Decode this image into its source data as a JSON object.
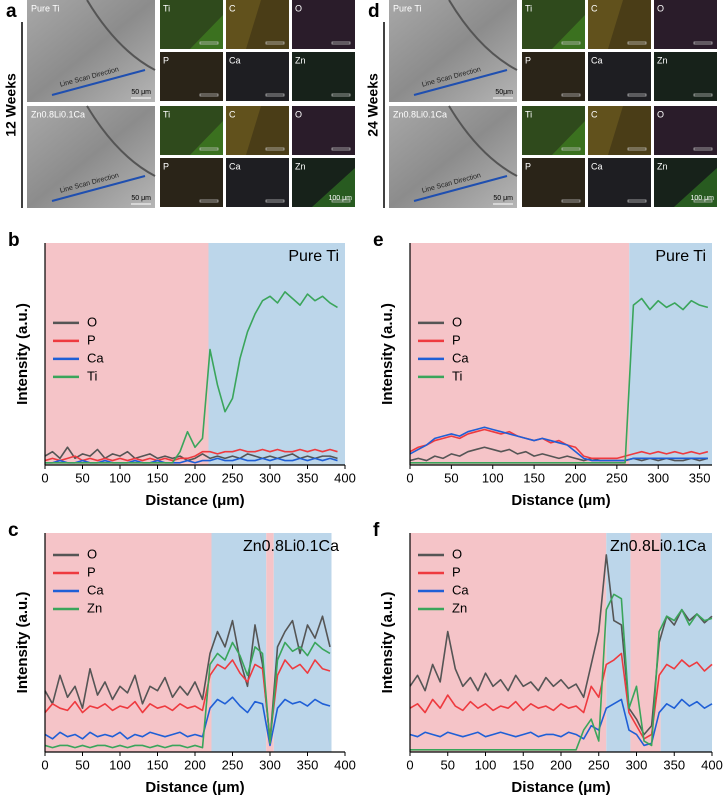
{
  "panel_a": {
    "label": "a",
    "row_label": "12 Weeks",
    "rows": [
      {
        "sample": "Pure Ti",
        "direction": "Line Scan Direction",
        "scale": "50 μm",
        "maps": [
          "Ti",
          "C",
          "O",
          "P",
          "Ca",
          "Zn"
        ]
      },
      {
        "sample": "Zn0.8Li0.1Ca",
        "direction": "Line Scan Direction",
        "scale": "50 μm",
        "maps": [
          "Ti",
          "C",
          "O",
          "P",
          "Ca",
          "Zn"
        ],
        "map_scale": "100 μm"
      }
    ]
  },
  "panel_d": {
    "label": "d",
    "row_label": "24 Weeks",
    "rows": [
      {
        "sample": "Pure Ti",
        "direction": "Line Scan Direction",
        "scale": "50μm",
        "maps": [
          "Ti",
          "C",
          "O",
          "P",
          "Ca",
          "Zn"
        ]
      },
      {
        "sample": "Zn0.8Li0.1Ca",
        "direction": "Line Scan Direction",
        "scale": "50 μm",
        "maps": [
          "Ti",
          "C",
          "O",
          "P",
          "Ca",
          "Zn"
        ],
        "map_scale": "100 μm"
      }
    ]
  },
  "chart_data": [
    {
      "type": "line",
      "panel_label": "b",
      "annotation": "Pure Ti",
      "xlabel": "Distance (μm)",
      "ylabel": "Intensity (a.u.)",
      "legend": "center left",
      "xlim": [
        0,
        400
      ],
      "xticks": [
        0,
        50,
        100,
        150,
        200,
        250,
        300,
        350,
        400
      ],
      "ylim": [
        0,
        100
      ],
      "regions": [
        {
          "range": [
            0,
            218
          ],
          "color": "#f5c4c8"
        },
        {
          "range": [
            218,
            400
          ],
          "color": "#bcd6ea"
        }
      ],
      "x": [
        0,
        10,
        20,
        30,
        40,
        50,
        60,
        70,
        80,
        90,
        100,
        110,
        120,
        130,
        140,
        150,
        160,
        170,
        180,
        190,
        200,
        210,
        220,
        230,
        240,
        250,
        260,
        270,
        280,
        290,
        300,
        310,
        320,
        330,
        340,
        350,
        360,
        370,
        380,
        390
      ],
      "series": [
        {
          "name": "O",
          "color": "#555555",
          "values": [
            4,
            6,
            3,
            8,
            3,
            5,
            4,
            7,
            3,
            5,
            4,
            6,
            3,
            4,
            5,
            3,
            4,
            3,
            4,
            2,
            3,
            5,
            3,
            4,
            3,
            4,
            3,
            5,
            4,
            3,
            4,
            3,
            4,
            5,
            3,
            4,
            3,
            4,
            4,
            3
          ]
        },
        {
          "name": "P",
          "color": "#ee3a3f",
          "values": [
            2,
            3,
            2,
            3,
            4,
            2,
            3,
            2,
            3,
            2,
            3,
            2,
            3,
            2,
            3,
            2,
            3,
            2,
            3,
            3,
            4,
            6,
            6,
            5,
            6,
            6,
            7,
            6,
            6,
            7,
            6,
            7,
            6,
            6,
            7,
            6,
            7,
            6,
            7,
            6
          ]
        },
        {
          "name": "Ca",
          "color": "#1f5fd6",
          "values": [
            1,
            1,
            2,
            1,
            1,
            2,
            1,
            1,
            2,
            1,
            1,
            1,
            2,
            1,
            1,
            2,
            1,
            1,
            1,
            2,
            1,
            2,
            2,
            3,
            2,
            2,
            3,
            2,
            2,
            3,
            2,
            3,
            2,
            2,
            3,
            2,
            3,
            2,
            3,
            2
          ]
        },
        {
          "name": "Ti",
          "color": "#3aa55b",
          "values": [
            1,
            1,
            1,
            1,
            1,
            1,
            1,
            1,
            1,
            1,
            1,
            1,
            1,
            1,
            1,
            1,
            1,
            1,
            6,
            15,
            8,
            12,
            52,
            36,
            24,
            30,
            48,
            60,
            68,
            74,
            76,
            73,
            78,
            75,
            72,
            77,
            74,
            76,
            73,
            71
          ]
        }
      ]
    },
    {
      "type": "line",
      "panel_label": "e",
      "annotation": "Pure Ti",
      "xlabel": "Distance (μm)",
      "ylabel": "Intensity (a.u.)",
      "legend": "center left",
      "xlim": [
        0,
        365
      ],
      "xticks": [
        0,
        50,
        100,
        150,
        200,
        250,
        300,
        350
      ],
      "ylim": [
        0,
        100
      ],
      "regions": [
        {
          "range": [
            0,
            265
          ],
          "color": "#f5c4c8"
        },
        {
          "range": [
            265,
            365
          ],
          "color": "#bcd6ea"
        }
      ],
      "x": [
        0,
        10,
        20,
        30,
        40,
        50,
        60,
        70,
        80,
        90,
        100,
        110,
        120,
        130,
        140,
        150,
        160,
        170,
        180,
        190,
        200,
        210,
        220,
        230,
        240,
        250,
        260,
        270,
        280,
        290,
        300,
        310,
        320,
        330,
        340,
        350,
        360
      ],
      "series": [
        {
          "name": "O",
          "color": "#555555",
          "values": [
            2,
            3,
            2,
            4,
            3,
            5,
            4,
            6,
            7,
            8,
            7,
            6,
            7,
            5,
            6,
            4,
            5,
            4,
            3,
            4,
            3,
            2,
            3,
            2,
            2,
            2,
            2,
            3,
            2,
            3,
            2,
            3,
            2,
            2,
            3,
            2,
            3
          ]
        },
        {
          "name": "P",
          "color": "#ee3a3f",
          "values": [
            6,
            8,
            9,
            11,
            12,
            13,
            12,
            14,
            15,
            16,
            15,
            14,
            15,
            13,
            12,
            11,
            12,
            10,
            11,
            9,
            8,
            4,
            3,
            3,
            3,
            3,
            4,
            5,
            6,
            5,
            6,
            5,
            6,
            5,
            6,
            5,
            6
          ]
        },
        {
          "name": "Ca",
          "color": "#1f5fd6",
          "values": [
            5,
            7,
            9,
            12,
            13,
            14,
            13,
            15,
            16,
            17,
            16,
            15,
            14,
            13,
            12,
            11,
            12,
            11,
            10,
            9,
            6,
            3,
            2,
            2,
            2,
            2,
            2,
            3,
            3,
            3,
            3,
            3,
            3,
            3,
            3,
            3,
            3
          ]
        },
        {
          "name": "Ti",
          "color": "#3aa55b",
          "values": [
            1,
            1,
            1,
            1,
            1,
            1,
            1,
            1,
            1,
            1,
            1,
            1,
            1,
            1,
            1,
            1,
            1,
            1,
            1,
            1,
            1,
            1,
            1,
            1,
            1,
            1,
            1,
            72,
            75,
            70,
            74,
            71,
            73,
            70,
            74,
            72,
            71
          ]
        }
      ]
    },
    {
      "type": "line",
      "panel_label": "c",
      "annotation": "Zn0.8Li0.1Ca",
      "xlabel": "Distance (μm)",
      "ylabel": "Intensity (a.u.)",
      "legend": "upper left",
      "xlim": [
        0,
        400
      ],
      "xticks": [
        0,
        50,
        100,
        150,
        200,
        250,
        300,
        350,
        400
      ],
      "ylim": [
        0,
        100
      ],
      "regions": [
        {
          "range": [
            0,
            222
          ],
          "color": "#f5c4c8"
        },
        {
          "range": [
            222,
            295
          ],
          "color": "#bcd6ea"
        },
        {
          "range": [
            295,
            305
          ],
          "color": "#f5c4c8"
        },
        {
          "range": [
            305,
            382
          ],
          "color": "#bcd6ea"
        }
      ],
      "x": [
        0,
        10,
        20,
        30,
        40,
        50,
        60,
        70,
        80,
        90,
        100,
        110,
        120,
        130,
        140,
        150,
        160,
        170,
        180,
        190,
        200,
        210,
        220,
        230,
        240,
        250,
        260,
        270,
        280,
        290,
        300,
        310,
        320,
        330,
        340,
        350,
        360,
        370,
        380
      ],
      "series": [
        {
          "name": "O",
          "color": "#555555",
          "values": [
            28,
            22,
            35,
            25,
            30,
            20,
            38,
            26,
            32,
            24,
            30,
            27,
            35,
            22,
            30,
            28,
            34,
            25,
            30,
            26,
            32,
            24,
            45,
            55,
            48,
            60,
            42,
            30,
            58,
            40,
            5,
            48,
            55,
            60,
            45,
            58,
            52,
            62,
            48
          ]
        },
        {
          "name": "P",
          "color": "#ee3a3f",
          "values": [
            18,
            22,
            20,
            19,
            23,
            18,
            21,
            20,
            22,
            19,
            21,
            20,
            23,
            18,
            22,
            20,
            21,
            19,
            22,
            20,
            21,
            19,
            35,
            40,
            38,
            42,
            36,
            32,
            40,
            38,
            6,
            35,
            42,
            38,
            40,
            36,
            42,
            38,
            37
          ]
        },
        {
          "name": "Ca",
          "color": "#1f5fd6",
          "values": [
            8,
            6,
            9,
            7,
            8,
            6,
            9,
            7,
            8,
            7,
            9,
            6,
            8,
            7,
            9,
            8,
            7,
            8,
            9,
            7,
            8,
            7,
            20,
            24,
            22,
            25,
            21,
            18,
            23,
            22,
            3,
            20,
            24,
            22,
            23,
            21,
            24,
            22,
            21
          ]
        },
        {
          "name": "Zn",
          "color": "#3aa55b",
          "values": [
            3,
            2,
            3,
            3,
            2,
            3,
            2,
            3,
            3,
            2,
            3,
            2,
            3,
            3,
            2,
            3,
            2,
            3,
            3,
            2,
            3,
            2,
            40,
            45,
            42,
            50,
            44,
            35,
            48,
            45,
            4,
            42,
            50,
            46,
            48,
            44,
            50,
            47,
            45
          ]
        }
      ]
    },
    {
      "type": "line",
      "panel_label": "f",
      "annotation": "Zn0.8Li0.1Ca",
      "xlabel": "Distance (μm)",
      "ylabel": "Intensity (a.u.)",
      "legend": "upper left",
      "xlim": [
        0,
        400
      ],
      "xticks": [
        0,
        50,
        100,
        150,
        200,
        250,
        300,
        350,
        400
      ],
      "ylim": [
        0,
        100
      ],
      "regions": [
        {
          "range": [
            0,
            260
          ],
          "color": "#f5c4c8"
        },
        {
          "range": [
            260,
            292
          ],
          "color": "#bcd6ea"
        },
        {
          "range": [
            292,
            332
          ],
          "color": "#f5c4c8"
        },
        {
          "range": [
            332,
            400
          ],
          "color": "#bcd6ea"
        }
      ],
      "x": [
        0,
        10,
        20,
        30,
        40,
        50,
        60,
        70,
        80,
        90,
        100,
        110,
        120,
        130,
        140,
        150,
        160,
        170,
        180,
        190,
        200,
        210,
        220,
        230,
        240,
        250,
        260,
        270,
        280,
        290,
        300,
        310,
        320,
        330,
        340,
        350,
        360,
        370,
        380,
        390,
        400
      ],
      "series": [
        {
          "name": "O",
          "color": "#555555",
          "values": [
            30,
            35,
            28,
            40,
            32,
            55,
            38,
            30,
            34,
            28,
            36,
            30,
            33,
            28,
            35,
            30,
            32,
            28,
            34,
            30,
            33,
            29,
            31,
            25,
            40,
            55,
            90,
            60,
            58,
            20,
            15,
            8,
            12,
            50,
            62,
            58,
            65,
            60,
            63,
            59,
            62
          ]
        },
        {
          "name": "P",
          "color": "#ee3a3f",
          "values": [
            20,
            22,
            18,
            24,
            20,
            26,
            21,
            19,
            23,
            20,
            22,
            19,
            21,
            20,
            23,
            19,
            22,
            20,
            21,
            19,
            22,
            20,
            21,
            18,
            30,
            25,
            40,
            42,
            45,
            18,
            12,
            6,
            8,
            35,
            40,
            38,
            42,
            39,
            41,
            37,
            40
          ]
        },
        {
          "name": "Ca",
          "color": "#1f5fd6",
          "values": [
            8,
            7,
            9,
            8,
            7,
            9,
            8,
            7,
            8,
            9,
            7,
            8,
            9,
            8,
            7,
            8,
            9,
            7,
            8,
            8,
            7,
            9,
            8,
            6,
            12,
            10,
            20,
            22,
            24,
            10,
            8,
            3,
            4,
            18,
            22,
            20,
            24,
            21,
            23,
            20,
            22
          ]
        },
        {
          "name": "Zn",
          "color": "#3aa55b",
          "values": [
            1,
            1,
            1,
            1,
            1,
            1,
            1,
            1,
            1,
            1,
            1,
            1,
            1,
            1,
            1,
            1,
            1,
            1,
            1,
            1,
            1,
            1,
            1,
            10,
            15,
            5,
            65,
            72,
            70,
            20,
            30,
            5,
            3,
            55,
            62,
            60,
            65,
            58,
            63,
            60,
            61
          ]
        }
      ]
    }
  ]
}
